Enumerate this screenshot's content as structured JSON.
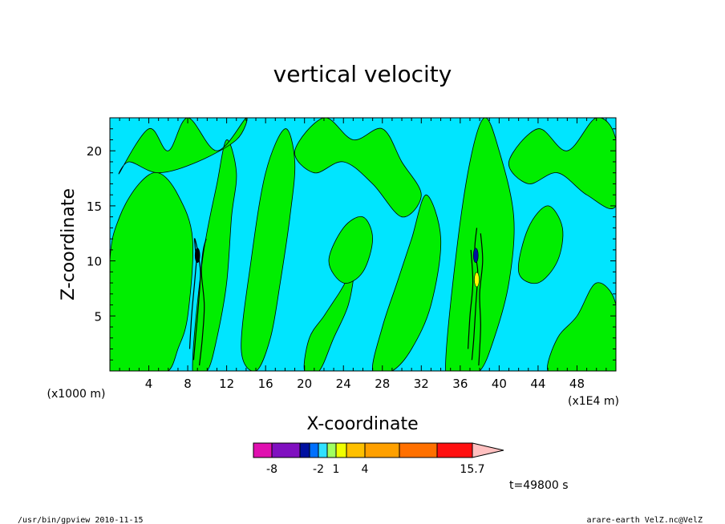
{
  "figure": {
    "footer_left": "/usr/bin/gpview   2010-11-15",
    "footer_right": "arare-earth_VelZ.nc@VelZ",
    "time_label": "t=49800 s"
  },
  "chart_data": {
    "type": "heatmap",
    "title": "vertical velocity",
    "xlabel": "X-coordinate",
    "ylabel": "Z-coordinate",
    "x_unit_left": "(x1000 m)",
    "x_unit_right": "(x1E4 m)",
    "xlim": [
      0,
      52
    ],
    "ylim": [
      0,
      23
    ],
    "xticks": [
      4,
      8,
      12,
      16,
      20,
      24,
      28,
      32,
      36,
      40,
      44,
      48
    ],
    "yticks": [
      5,
      10,
      15,
      20
    ],
    "colors": {
      "background_field": "#00e5ff",
      "positive_field": "#00ee00",
      "contour": "#000000"
    },
    "colorbar": {
      "colors": [
        "#e010b0",
        "#8010c0",
        "#0010a0",
        "#0070ff",
        "#30e0ff",
        "#a0ff60",
        "#f0ff00",
        "#ffc000",
        "#ffa000",
        "#ff7000",
        "#ff1010",
        "#ff8080",
        "#ffc0c0"
      ],
      "labels": [
        {
          "text": "-8",
          "index": 0
        },
        {
          "text": "-2",
          "index": 3
        },
        {
          "text": "1",
          "index": 5
        },
        {
          "text": "4",
          "index": 7
        },
        {
          "text": "15.7",
          "index": 12
        }
      ]
    },
    "regions": [
      {
        "name": "green-band-left",
        "x": [
          0,
          2,
          4,
          6,
          7,
          8,
          8.5,
          7,
          5,
          3,
          1,
          0
        ],
        "y": [
          0,
          0,
          0,
          0,
          2,
          5,
          12,
          16,
          18,
          17,
          14,
          10
        ]
      },
      {
        "name": "green-band-8-12",
        "x": [
          8.5,
          10,
          11,
          12,
          12.5,
          13,
          12,
          11,
          9.5
        ],
        "y": [
          0,
          0,
          3,
          8,
          14,
          18,
          21,
          17,
          10
        ]
      },
      {
        "name": "green-top-left",
        "x": [
          1,
          4,
          6,
          8,
          11,
          14,
          13,
          9,
          5,
          2
        ],
        "y": [
          18,
          22,
          20,
          23,
          20,
          23,
          21,
          19,
          18,
          19
        ]
      },
      {
        "name": "green-band-14-19",
        "x": [
          13.5,
          15,
          16.5,
          17.5,
          18.5,
          19,
          18,
          16,
          14.5
        ],
        "y": [
          2,
          0,
          3,
          8,
          14,
          19,
          22,
          18,
          10
        ]
      },
      {
        "name": "green-top-center",
        "x": [
          19,
          22,
          25,
          28,
          30,
          32,
          30,
          27,
          24,
          21
        ],
        "y": [
          20,
          23,
          21,
          22,
          19,
          16,
          14,
          17,
          19,
          18
        ]
      },
      {
        "name": "green-band-20-24",
        "x": [
          20,
          21.5,
          23,
          24.5,
          25,
          23.5,
          22,
          20.5
        ],
        "y": [
          0,
          0,
          3,
          6,
          9,
          7,
          5,
          3
        ]
      },
      {
        "name": "green-band-27-33",
        "x": [
          27,
          29,
          31,
          33,
          34,
          32.5,
          31,
          29.5,
          28
        ],
        "y": [
          0,
          0,
          2,
          6,
          12,
          16,
          12,
          8,
          4
        ]
      },
      {
        "name": "green-band-35-41",
        "x": [
          34.5,
          36,
          38,
          39.5,
          41,
          41.5,
          40,
          38.5,
          37,
          35.5
        ],
        "y": [
          0,
          0,
          0,
          3,
          8,
          14,
          20,
          23,
          19,
          10
        ]
      },
      {
        "name": "green-top-right",
        "x": [
          41,
          44,
          47,
          50,
          52,
          52,
          49,
          46,
          43
        ],
        "y": [
          19,
          22,
          20,
          23,
          21,
          15,
          16,
          18,
          17
        ]
      },
      {
        "name": "green-band-right",
        "x": [
          45,
          47.5,
          50,
          52,
          52,
          50,
          48,
          46
        ],
        "y": [
          0,
          0,
          0,
          0,
          6,
          8,
          5,
          3
        ]
      },
      {
        "name": "green-blob-mid",
        "x": [
          22.5,
          24,
          26,
          27,
          26,
          24
        ],
        "y": [
          10,
          8,
          9,
          12,
          14,
          13
        ]
      },
      {
        "name": "green-blob-right-mid",
        "x": [
          42,
          44,
          46,
          46.5,
          45,
          43
        ],
        "y": [
          9,
          8,
          10,
          13,
          15,
          13
        ]
      }
    ],
    "contour_lines": [
      {
        "name": "core-left-a",
        "x": [
          8.6,
          8.8,
          9.1,
          9.3,
          9.0,
          8.7,
          8.9
        ],
        "y": [
          1,
          3,
          6,
          9,
          11,
          12,
          10
        ]
      },
      {
        "name": "core-left-b",
        "x": [
          9.2,
          9.5,
          9.7,
          9.4,
          9.6,
          9.9
        ],
        "y": [
          0.5,
          3,
          6,
          9,
          11,
          12
        ]
      },
      {
        "name": "core-left-c",
        "x": [
          8.2,
          8.4,
          8.7,
          9.0
        ],
        "y": [
          2,
          5,
          8,
          11
        ]
      },
      {
        "name": "core-right-a",
        "x": [
          37.2,
          37.4,
          37.6,
          37.8,
          37.5,
          37.7
        ],
        "y": [
          1,
          3,
          6,
          9,
          11,
          13
        ]
      },
      {
        "name": "core-right-b",
        "x": [
          37.9,
          38.1,
          38.0,
          38.3,
          38.1
        ],
        "y": [
          0.5,
          4,
          7,
          10,
          12.5
        ]
      },
      {
        "name": "core-right-c",
        "x": [
          36.8,
          37.0,
          37.3,
          37.1
        ],
        "y": [
          2,
          5,
          8,
          11
        ]
      }
    ],
    "cores": [
      {
        "name": "dark-core-left",
        "x": 9.0,
        "y": 10.5,
        "color": "#000000"
      },
      {
        "name": "dark-core-right",
        "x": 37.6,
        "y": 10.5,
        "color": "#0010a0"
      },
      {
        "name": "warm-core-right",
        "x": 37.7,
        "y": 8.3,
        "color": "#ffff00"
      }
    ]
  }
}
